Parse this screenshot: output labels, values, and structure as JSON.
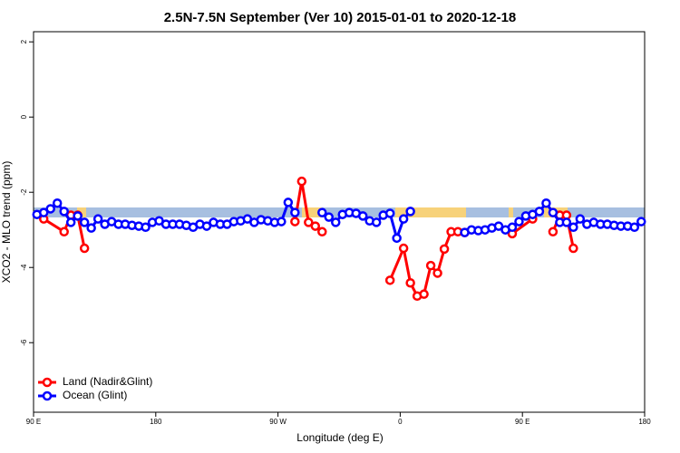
{
  "chart_data": {
    "type": "line",
    "title": "2.5N-7.5N September (Ver 10)   2015-01-01 to 2020-12-18",
    "x_label": "Longitude (deg E)",
    "y_label": "XCO2 - MLO trend (ppm)",
    "xlim": [
      90,
      540
    ],
    "xticks": [
      {
        "value": 90,
        "label": "90 E"
      },
      {
        "value": 180,
        "label": "180"
      },
      {
        "value": 270,
        "label": "90 W"
      },
      {
        "value": 360,
        "label": "0"
      },
      {
        "value": 450,
        "label": "90 E"
      },
      {
        "value": 540,
        "label": "180"
      }
    ],
    "ylim": [
      -7.85,
      2.27
    ],
    "yticks": [
      2,
      0,
      -2,
      -4,
      -6
    ],
    "legend": "bottom-left",
    "series": [
      {
        "name": "Land (Nadir&Glint)",
        "color": "#ff0000",
        "x": [
          97.5,
          112.5,
          117.5,
          122.5,
          127.5,
          132.5,
          282.5,
          287.5,
          292.5,
          297.5,
          302.5,
          307.5,
          352.5,
          362.5,
          367.5,
          372.5,
          377.5,
          382.5,
          387.5,
          392.5,
          397.5,
          402.5,
          407.5,
          412.5,
          442.5,
          457.5,
          462.5,
          472.5,
          477.5,
          482.5,
          487.5
        ],
        "values": [
          -2.71,
          -3.05,
          -2.61,
          -2.61,
          -3.49,
          null,
          -2.78,
          -1.71,
          -2.8,
          -2.9,
          -3.05,
          null,
          -4.34,
          -3.49,
          -4.41,
          -4.76,
          -4.71,
          -3.95,
          -4.15,
          -3.51,
          -3.05,
          -3.05,
          -3.07,
          null,
          -3.1,
          -2.71,
          null,
          -3.05,
          -2.61,
          -2.61,
          -3.49
        ]
      },
      {
        "name": "Ocean (Glint)",
        "color": "#0000ff",
        "x": [
          92.5,
          97.5,
          102.5,
          107.5,
          112.5,
          117.5,
          122.5,
          127.5,
          132.5,
          137.5,
          142.5,
          147.5,
          152.5,
          157.5,
          162.5,
          167.5,
          172.5,
          177.5,
          182.5,
          187.5,
          192.5,
          197.5,
          202.5,
          207.5,
          212.5,
          217.5,
          222.5,
          227.5,
          232.5,
          237.5,
          242.5,
          247.5,
          252.5,
          257.5,
          262.5,
          267.5,
          272.5,
          277.5,
          282.5,
          287.5,
          302.5,
          307.5,
          312.5,
          317.5,
          322.5,
          327.5,
          332.5,
          337.5,
          342.5,
          347.5,
          352.5,
          357.5,
          362.5,
          367.5,
          372.5,
          407.5,
          412.5,
          417.5,
          422.5,
          427.5,
          432.5,
          437.5,
          442.5,
          447.5,
          452.5,
          457.5,
          462.5,
          467.5,
          472.5,
          477.5,
          482.5,
          487.5,
          492.5,
          497.5,
          502.5,
          507.5,
          512.5,
          517.5,
          522.5,
          527.5,
          532.5,
          537.5
        ],
        "values": [
          -2.59,
          -2.54,
          -2.44,
          -2.29,
          -2.51,
          -2.8,
          -2.63,
          -2.8,
          -2.95,
          -2.71,
          -2.85,
          -2.78,
          -2.85,
          -2.85,
          -2.88,
          -2.9,
          -2.93,
          -2.8,
          -2.76,
          -2.85,
          -2.85,
          -2.85,
          -2.88,
          -2.93,
          -2.85,
          -2.9,
          -2.8,
          -2.85,
          -2.85,
          -2.78,
          -2.76,
          -2.71,
          -2.8,
          -2.73,
          -2.76,
          -2.8,
          -2.78,
          -2.27,
          -2.54,
          null,
          -2.54,
          -2.66,
          -2.8,
          -2.59,
          -2.54,
          -2.56,
          -2.63,
          -2.76,
          -2.8,
          -2.61,
          -2.56,
          -3.22,
          -2.71,
          -2.51,
          null,
          -3.07,
          -3.0,
          -3.02,
          -3.0,
          -2.95,
          -2.9,
          -3.0,
          -2.93,
          -2.78,
          -2.63,
          -2.59,
          -2.51,
          -2.29,
          -2.54,
          -2.8,
          -2.8,
          -2.93,
          -2.71,
          -2.85,
          -2.8,
          -2.85,
          -2.85,
          -2.88,
          -2.9,
          -2.9,
          -2.93,
          -2.78
        ]
      }
    ]
  }
}
